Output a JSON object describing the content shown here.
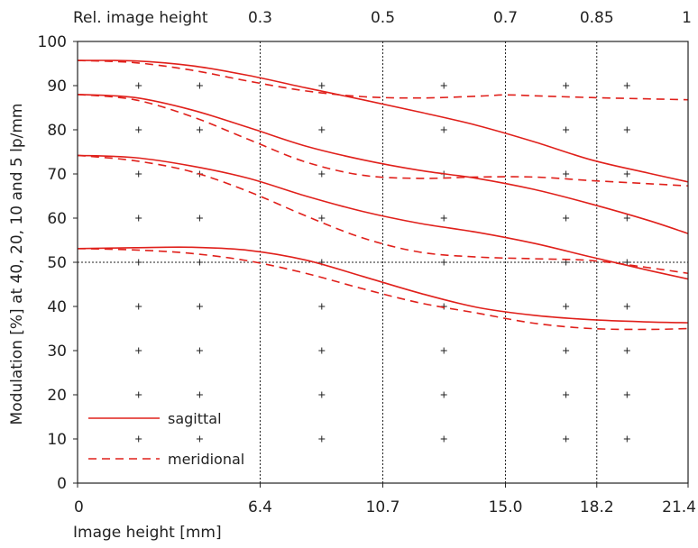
{
  "chart_data": {
    "type": "line",
    "xlabel": "Image height [mm]",
    "ylabel": "Modulation [%] at 40, 20, 10 and 5 lp/mm",
    "top_axis_label": "Rel. image height",
    "xlim": [
      0,
      21.4
    ],
    "ylim": [
      0,
      100
    ],
    "x_ticks": [
      0,
      6.4,
      10.7,
      15.0,
      18.2,
      21.4
    ],
    "x_tick_labels": [
      "0",
      "6.4",
      "10.7",
      "15.0",
      "18.2",
      "21.4"
    ],
    "top_ticks": [
      6.4,
      10.7,
      15.0,
      18.2,
      21.4
    ],
    "top_tick_labels": [
      "0.3",
      "0.5",
      "0.7",
      "0.85",
      "1"
    ],
    "y_ticks": [
      0,
      10,
      20,
      30,
      40,
      50,
      60,
      70,
      80,
      90,
      100
    ],
    "y_tick_labels": [
      "0",
      "10",
      "20",
      "30",
      "40",
      "50",
      "60",
      "70",
      "80",
      "90",
      "100"
    ],
    "plus_grid_x": [
      2.14,
      4.28,
      8.56,
      12.84,
      17.12,
      19.26
    ],
    "plus_grid_y": [
      10,
      20,
      30,
      40,
      50,
      60,
      70,
      80,
      90
    ],
    "dotted_reference_lines": {
      "x": [
        6.4,
        10.7,
        15.0,
        18.2
      ],
      "y": [
        50
      ]
    },
    "legend": [
      {
        "label": "sagittal",
        "style": "solid"
      },
      {
        "label": "meridional",
        "style": "dashed"
      }
    ],
    "line_color": "#e0201b",
    "series": [
      {
        "type": "sagittal",
        "style": "solid",
        "points": [
          [
            0,
            95.7
          ],
          [
            2,
            95.6
          ],
          [
            4,
            94.5
          ],
          [
            6,
            92.3
          ],
          [
            8,
            89.5
          ],
          [
            10,
            86.8
          ],
          [
            12,
            84.0
          ],
          [
            14,
            81.0
          ],
          [
            16,
            77.3
          ],
          [
            18,
            73.2
          ],
          [
            20,
            70.2
          ],
          [
            21.4,
            68.2
          ]
        ]
      },
      {
        "type": "meridional",
        "style": "dashed",
        "points": [
          [
            0,
            95.7
          ],
          [
            2,
            95.2
          ],
          [
            4,
            93.5
          ],
          [
            6,
            91.0
          ],
          [
            8,
            88.8
          ],
          [
            10,
            87.5
          ],
          [
            12,
            87.2
          ],
          [
            14,
            87.6
          ],
          [
            15,
            87.9
          ],
          [
            16,
            87.7
          ],
          [
            18,
            87.3
          ],
          [
            20,
            87.0
          ],
          [
            21.4,
            86.8
          ]
        ]
      },
      {
        "type": "sagittal",
        "style": "solid",
        "points": [
          [
            0,
            88.0
          ],
          [
            2,
            87.3
          ],
          [
            4,
            84.5
          ],
          [
            6,
            80.5
          ],
          [
            8,
            76.3
          ],
          [
            10,
            73.2
          ],
          [
            12,
            70.8
          ],
          [
            14,
            69.0
          ],
          [
            16,
            66.5
          ],
          [
            18,
            63.2
          ],
          [
            20,
            59.5
          ],
          [
            21.4,
            56.5
          ]
        ]
      },
      {
        "type": "meridional",
        "style": "dashed",
        "points": [
          [
            0,
            88.0
          ],
          [
            2,
            86.8
          ],
          [
            4,
            83.0
          ],
          [
            6,
            77.8
          ],
          [
            8,
            72.7
          ],
          [
            10,
            69.7
          ],
          [
            12,
            69.0
          ],
          [
            14,
            69.3
          ],
          [
            16,
            69.3
          ],
          [
            18,
            68.5
          ],
          [
            20,
            67.8
          ],
          [
            21.4,
            67.3
          ]
        ]
      },
      {
        "type": "sagittal",
        "style": "solid",
        "points": [
          [
            0,
            74.2
          ],
          [
            2,
            73.7
          ],
          [
            4,
            71.8
          ],
          [
            6,
            69.0
          ],
          [
            8,
            65.0
          ],
          [
            10,
            61.5
          ],
          [
            12,
            58.8
          ],
          [
            14,
            56.8
          ],
          [
            16,
            54.3
          ],
          [
            18,
            51.2
          ],
          [
            20,
            48.2
          ],
          [
            21.4,
            46.2
          ]
        ]
      },
      {
        "type": "meridional",
        "style": "dashed",
        "points": [
          [
            0,
            74.2
          ],
          [
            2,
            73.0
          ],
          [
            4,
            70.5
          ],
          [
            6,
            66.0
          ],
          [
            8,
            60.5
          ],
          [
            10,
            55.5
          ],
          [
            12,
            52.3
          ],
          [
            14,
            51.2
          ],
          [
            16,
            50.8
          ],
          [
            18,
            50.4
          ],
          [
            20,
            48.8
          ],
          [
            21.4,
            47.5
          ]
        ]
      },
      {
        "type": "sagittal",
        "style": "solid",
        "points": [
          [
            0,
            53.1
          ],
          [
            2,
            53.3
          ],
          [
            4,
            53.4
          ],
          [
            6,
            52.7
          ],
          [
            8,
            50.5
          ],
          [
            10,
            46.8
          ],
          [
            12,
            43.0
          ],
          [
            14,
            39.8
          ],
          [
            16,
            38.0
          ],
          [
            18,
            37.0
          ],
          [
            20,
            36.5
          ],
          [
            21.4,
            36.3
          ]
        ]
      },
      {
        "type": "meridional",
        "style": "dashed",
        "points": [
          [
            0,
            53.1
          ],
          [
            2,
            52.8
          ],
          [
            4,
            52.0
          ],
          [
            6,
            50.3
          ],
          [
            8,
            47.5
          ],
          [
            10,
            44.0
          ],
          [
            12,
            40.8
          ],
          [
            14,
            38.5
          ],
          [
            16,
            36.2
          ],
          [
            18,
            35.0
          ],
          [
            20,
            34.8
          ],
          [
            21.4,
            35.0
          ]
        ]
      }
    ]
  }
}
